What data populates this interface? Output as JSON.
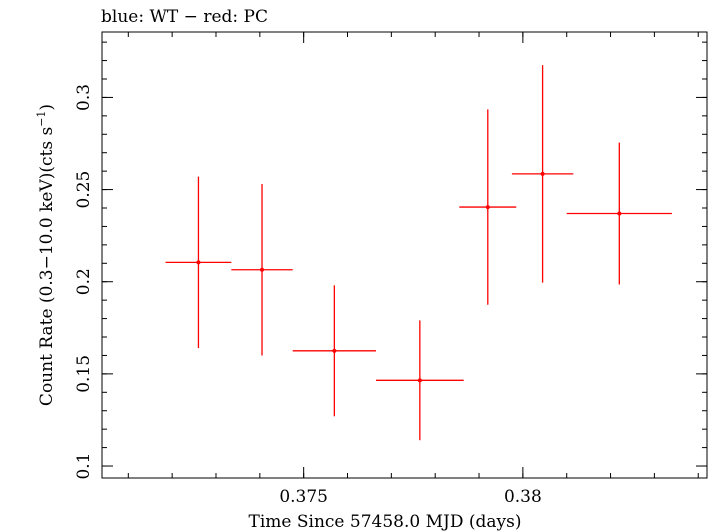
{
  "chart_data": {
    "type": "scatter",
    "title": "blue: WT − red: PC",
    "xlabel": "Time Since 57458.0 MJD (days)",
    "ylabel_main": "Count Rate (0.3−10.0 keV)(cts s",
    "ylabel_sup": "−1",
    "ylabel_close": ")",
    "xlim": [
      0.3704,
      0.3842
    ],
    "ylim": [
      0.0935,
      0.3355
    ],
    "x_ticks": [
      {
        "value": 0.375,
        "label": "0.375"
      },
      {
        "value": 0.38,
        "label": "0.38"
      }
    ],
    "y_ticks": [
      {
        "value": 0.1,
        "label": "0.1"
      },
      {
        "value": 0.15,
        "label": "0.15"
      },
      {
        "value": 0.2,
        "label": "0.2"
      },
      {
        "value": 0.25,
        "label": "0.25"
      },
      {
        "value": 0.3,
        "label": "0.3"
      }
    ],
    "x_minor_step": 0.001,
    "y_minor_step": 0.01,
    "series": [
      {
        "color": "#ff0000",
        "points": [
          {
            "x": 0.3726,
            "xerr": 0.00075,
            "y": 0.2105,
            "yerr": 0.0465
          },
          {
            "x": 0.37405,
            "xerr": 0.0007,
            "y": 0.2065,
            "yerr": 0.0465
          },
          {
            "x": 0.3757,
            "xerr": 0.00095,
            "y": 0.1625,
            "yerr": 0.0355
          },
          {
            "x": 0.37765,
            "xerr": 0.001,
            "y": 0.1465,
            "yerr": 0.0325
          },
          {
            "x": 0.3792,
            "xerr": 0.00065,
            "y": 0.2405,
            "yerr": 0.053
          },
          {
            "x": 0.38045,
            "xerr": 0.0007,
            "y": 0.2585,
            "yerr": 0.059
          },
          {
            "x": 0.3822,
            "xerr": 0.0012,
            "y": 0.237,
            "yerr": 0.0385
          }
        ]
      }
    ]
  }
}
